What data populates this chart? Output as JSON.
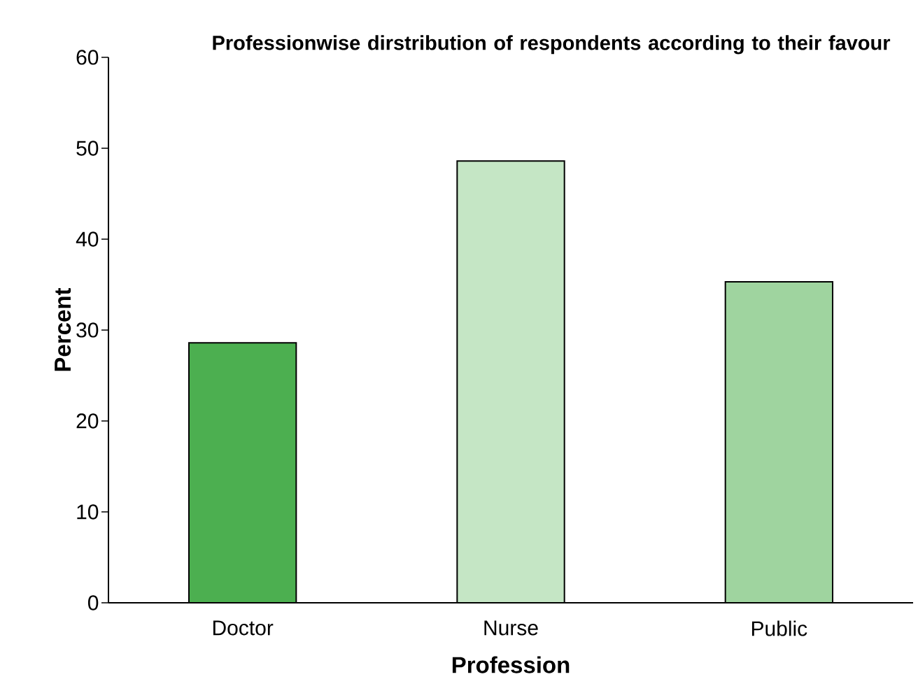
{
  "chart_data": {
    "type": "bar",
    "title": "Professionwise dirstribution of respondents according to their favour",
    "xlabel": "Profession",
    "ylabel": "Percent",
    "categories": [
      "Doctor",
      "Nurse",
      "Public"
    ],
    "values": [
      28.6,
      48.6,
      35.3
    ],
    "colors": [
      "#4caf50",
      "#c5e6c5",
      "#9fd49f"
    ],
    "ylim": [
      0,
      60
    ],
    "yticks": [
      0,
      10,
      20,
      30,
      40,
      50,
      60
    ],
    "grid": false
  }
}
